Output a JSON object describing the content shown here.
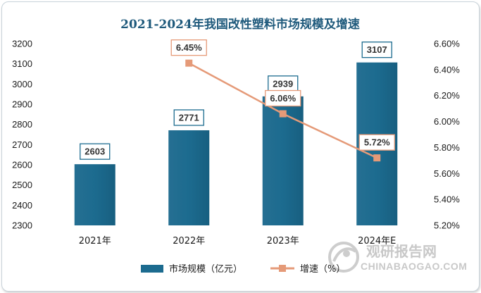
{
  "chart_data": {
    "type": "bar",
    "title": "2021-2024年我国改性塑料市场规模及增速",
    "categories": [
      "2021年",
      "2022年",
      "2023年",
      "2024年E"
    ],
    "series": [
      {
        "name": "市场规模（亿元）",
        "type": "bar",
        "axis": "left",
        "values": [
          2603,
          2771,
          2939,
          3107
        ],
        "labels": [
          "2603",
          "2771",
          "2939",
          "3107"
        ]
      },
      {
        "name": "增速（%）",
        "type": "line",
        "axis": "right",
        "values": [
          null,
          6.45,
          6.06,
          5.72
        ],
        "labels": [
          "",
          "6.45%",
          "6.06%",
          "5.72%"
        ]
      }
    ],
    "y_left": {
      "min": 2300,
      "max": 3200,
      "step": 100,
      "ticks": [
        "2300",
        "2400",
        "2500",
        "2600",
        "2700",
        "2800",
        "2900",
        "3000",
        "3100",
        "3200"
      ]
    },
    "y_right": {
      "min": 5.2,
      "max": 6.6,
      "step": 0.2,
      "ticks": [
        "5.20%",
        "5.40%",
        "5.60%",
        "5.80%",
        "6.00%",
        "6.20%",
        "6.40%",
        "6.60%"
      ]
    },
    "legend_position": "bottom",
    "grid": false
  },
  "colors": {
    "bar": "#1c6b8f",
    "line": "#e59a78",
    "title": "#1f5a7c",
    "label_border": "#1c6b8f"
  },
  "legend": {
    "bar_label": "市场规模（亿元）",
    "line_label": "增速（%）"
  },
  "watermark": {
    "cn": "观研报告网",
    "en": "CHINABAOGAO.COM",
    "icon": "logo-icon"
  }
}
